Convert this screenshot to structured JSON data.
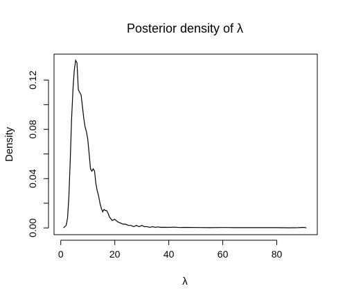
{
  "chart_data": {
    "type": "line",
    "title": "Posterior density of λ",
    "xlabel": "λ",
    "ylabel": "Density",
    "xlim": [
      -2.5,
      95
    ],
    "ylim": [
      -0.0055,
      0.141
    ],
    "x_ticks": [
      0,
      20,
      40,
      60,
      80
    ],
    "x_tick_labels": [
      "0",
      "20",
      "40",
      "60",
      "80"
    ],
    "y_ticks": [
      0.0,
      0.02,
      0.04,
      0.06,
      0.08,
      0.1,
      0.12
    ],
    "y_tick_labels": [
      "0.00",
      "",
      "0.04",
      "",
      "0.08",
      "",
      "0.12"
    ],
    "grid": false,
    "legend": "none",
    "series": [
      {
        "color": "#000000",
        "x": [
          1,
          2,
          2.5,
          3,
          3.5,
          4,
          4.5,
          5,
          5.5,
          6,
          6.5,
          7,
          7.5,
          8,
          8.5,
          9,
          9.5,
          10,
          10.5,
          11,
          11.5,
          12,
          12.5,
          13,
          13.5,
          14,
          14.5,
          15,
          15.5,
          16,
          16.5,
          17,
          17.5,
          18,
          19,
          20,
          21,
          22,
          23,
          24,
          25,
          26,
          27,
          28,
          29,
          30,
          31,
          32,
          33,
          34,
          35,
          36,
          37,
          38,
          40,
          42,
          44,
          46,
          50,
          55,
          60,
          65,
          70,
          75,
          80,
          85,
          88,
          90,
          91
        ],
        "y": [
          0.0,
          0.002,
          0.008,
          0.025,
          0.055,
          0.088,
          0.112,
          0.128,
          0.136,
          0.134,
          0.112,
          0.11,
          0.108,
          0.099,
          0.089,
          0.082,
          0.078,
          0.072,
          0.06,
          0.048,
          0.046,
          0.048,
          0.046,
          0.036,
          0.03,
          0.026,
          0.02,
          0.016,
          0.013,
          0.015,
          0.014,
          0.014,
          0.012,
          0.009,
          0.006,
          0.007,
          0.005,
          0.004,
          0.003,
          0.003,
          0.002,
          0.002,
          0.001,
          0.002,
          0.001,
          0.002,
          0.001,
          0.001,
          0.0005,
          0.001,
          0.0005,
          0.0008,
          0.0004,
          0.0005,
          0.0004,
          0.0006,
          0.0003,
          0.0004,
          0.0003,
          0.0002,
          0.0003,
          0.0002,
          0.0002,
          0.0002,
          0.0002,
          0.0001,
          0.0002,
          0.0004,
          0.0
        ]
      }
    ]
  }
}
